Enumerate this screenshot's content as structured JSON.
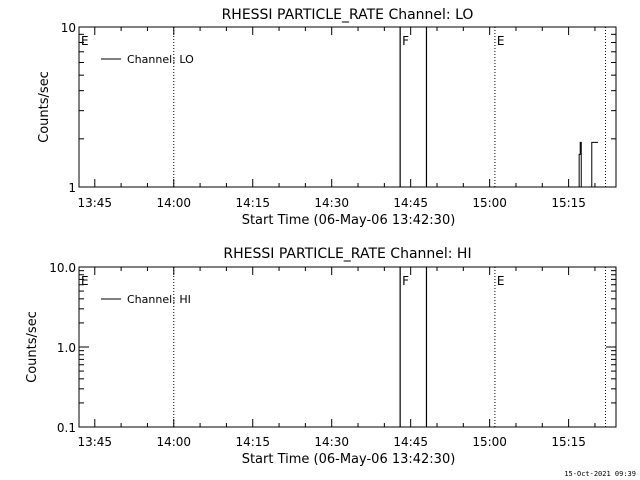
{
  "timestamp": "15-Oct-2021 09:39",
  "colors": {
    "axes": "#000000",
    "background": "#ffffff",
    "data": "#000000"
  },
  "chart_data": [
    {
      "type": "line",
      "title": "RHESSI PARTICLE_RATE Channel: LO",
      "xlabel": "Start Time (06-May-06 13:42:30)",
      "ylabel": "Counts/sec",
      "y_scale": "log",
      "ylim": [
        1,
        10
      ],
      "y_ticks": [
        {
          "value": 1,
          "label": "1"
        },
        {
          "value": 10,
          "label": "10"
        }
      ],
      "y_minor_ticks": [
        2,
        3,
        4,
        5,
        6,
        7,
        8,
        9
      ],
      "xlim": [
        "13:42",
        "15:24"
      ],
      "x_ticks": [
        "13:45",
        "14:00",
        "14:15",
        "14:30",
        "14:45",
        "15:00",
        "15:15"
      ],
      "legend": {
        "label": "Channel: LO",
        "position": "top-left"
      },
      "event_markers": [
        {
          "time": "13:42",
          "label": "E"
        },
        {
          "time": "14:43",
          "label": "F"
        },
        {
          "time": "15:01",
          "label": "E"
        }
      ],
      "dotted_lines": [
        "14:00",
        "15:01",
        "15:22"
      ],
      "solid_lines": [
        "14:43",
        "14:48"
      ],
      "series": [
        {
          "points": [
            {
              "x": "15:17.0",
              "y": 1
            },
            {
              "x": "15:17.0",
              "y": 1.6
            },
            {
              "x": "15:17.2",
              "y": 1.6
            },
            {
              "x": "15:17.2",
              "y": 1.9
            },
            {
              "x": "15:17.4",
              "y": 1.9
            },
            {
              "x": "15:17.4",
              "y": 1
            },
            {
              "x": "15:19.4",
              "y": 1
            },
            {
              "x": "15:19.4",
              "y": 1.9
            },
            {
              "x": "15:20.6",
              "y": 1.9
            }
          ]
        }
      ]
    },
    {
      "type": "line",
      "title": "RHESSI PARTICLE_RATE Channel: HI",
      "xlabel": "Start Time (06-May-06 13:42:30)",
      "ylabel": "Counts/sec",
      "y_scale": "log",
      "ylim": [
        0.1,
        10
      ],
      "y_ticks": [
        {
          "value": 0.1,
          "label": "0.1"
        },
        {
          "value": 1,
          "label": "1.0"
        },
        {
          "value": 10,
          "label": "10.0"
        }
      ],
      "y_minor_ticks": [
        0.2,
        0.3,
        0.4,
        0.5,
        0.6,
        0.7,
        0.8,
        0.9,
        2,
        3,
        4,
        5,
        6,
        7,
        8,
        9
      ],
      "xlim": [
        "13:42",
        "15:24"
      ],
      "x_ticks": [
        "13:45",
        "14:00",
        "14:15",
        "14:30",
        "14:45",
        "15:00",
        "15:15"
      ],
      "legend": {
        "label": "Channel: HI",
        "position": "top-left"
      },
      "event_markers": [
        {
          "time": "13:42",
          "label": "E"
        },
        {
          "time": "14:43",
          "label": "F"
        },
        {
          "time": "15:01",
          "label": "E"
        }
      ],
      "dotted_lines": [
        "14:00",
        "15:01",
        "15:22"
      ],
      "solid_lines": [
        "14:43",
        "14:48"
      ],
      "series": [
        {
          "points": []
        }
      ]
    }
  ]
}
